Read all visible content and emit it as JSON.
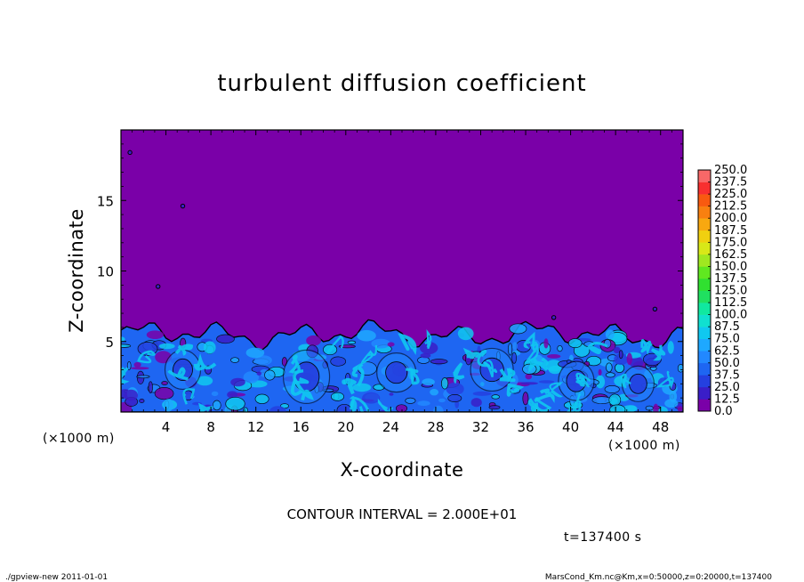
{
  "chart_data": {
    "type": "heatmap",
    "title": "turbulent diffusion coefficient",
    "xlabel": "X-coordinate",
    "ylabel": "Z-coordinate",
    "x_unit": "(×1000 m)",
    "y_unit": "(×1000 m)",
    "xlim": [
      0,
      50
    ],
    "ylim": [
      0,
      20
    ],
    "x_ticks": [
      4,
      8,
      12,
      16,
      20,
      24,
      28,
      32,
      36,
      40,
      44,
      48
    ],
    "y_ticks": [
      5,
      10,
      15
    ],
    "colorbar": {
      "levels": [
        0.0,
        12.5,
        25.0,
        37.5,
        50.0,
        62.5,
        75.0,
        87.5,
        100.0,
        112.5,
        125.0,
        137.5,
        150.0,
        162.5,
        175.0,
        187.5,
        200.0,
        212.5,
        225.0,
        237.5,
        250.0
      ],
      "labels": [
        "0.0",
        "12.5",
        "25.0",
        "37.5",
        "50.0",
        "62.5",
        "75.0",
        "87.5",
        "100.0",
        "112.5",
        "125.0",
        "137.5",
        "150.0",
        "162.5",
        "175.0",
        "187.5",
        "200.0",
        "212.5",
        "225.0",
        "237.5",
        "250.0"
      ],
      "colors": [
        "#7a00a8",
        "#3a1ec8",
        "#2440e0",
        "#1e66f2",
        "#2288ff",
        "#1ea8ff",
        "#10c8f0",
        "#10e0d0",
        "#10e8a0",
        "#20e060",
        "#30e030",
        "#60e820",
        "#a0e820",
        "#d8e818",
        "#f0d010",
        "#f8a810",
        "#f88010",
        "#f85a10",
        "#f83030",
        "#f86868"
      ]
    },
    "field": {
      "background_level": "0.0",
      "turbulent_layer_top_approx": [
        5.5,
        6.0
      ],
      "max_level_reached": "75.0"
    },
    "contour_interval": "CONTOUR INTERVAL = 2.000E+01",
    "time_label": "t=137400  s"
  },
  "footer": {
    "left": "./gpview-new  2011-01-01",
    "right": "MarsCond_Km.nc@Km,x=0:50000,z=0:20000,t=137400"
  }
}
